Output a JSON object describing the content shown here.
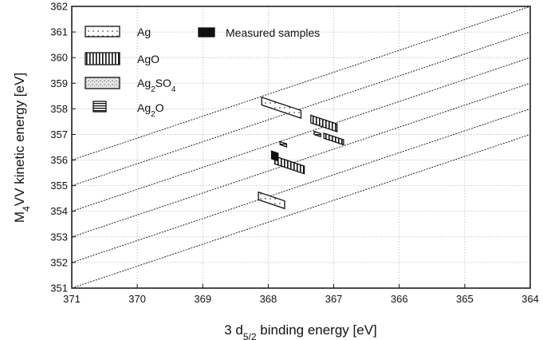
{
  "chart_data": {
    "type": "scatter",
    "xlabel_parts": [
      "3 d",
      "5/2",
      " binding energy [eV]"
    ],
    "ylabel_parts": [
      "M",
      "4",
      "VV kinetic energy [eV]"
    ],
    "xlim": [
      371,
      364
    ],
    "ylim": [
      351,
      362
    ],
    "x_ticks": [
      "371",
      "370",
      "369",
      "368",
      "367",
      "366",
      "365",
      "364"
    ],
    "y_ticks": [
      "351",
      "352",
      "353",
      "354",
      "355",
      "356",
      "357",
      "358",
      "359",
      "360",
      "361",
      "362"
    ],
    "x_tick_values": [
      371,
      370,
      369,
      368,
      367,
      366,
      365,
      364
    ],
    "y_tick_values": [
      351,
      352,
      353,
      354,
      355,
      356,
      357,
      358,
      359,
      360,
      361,
      362
    ],
    "grid": true,
    "legend_position": "top-left",
    "auger_parameter_lines": [
      {
        "x0": 371,
        "y0": 356,
        "x1": 364,
        "y1": 362
      },
      {
        "x0": 371,
        "y0": 355,
        "x1": 364,
        "y1": 361
      },
      {
        "x0": 371,
        "y0": 354,
        "x1": 364,
        "y1": 360
      },
      {
        "x0": 371,
        "y0": 353,
        "x1": 364,
        "y1": 359
      },
      {
        "x0": 371,
        "y0": 352,
        "x1": 364,
        "y1": 358
      },
      {
        "x0": 371,
        "y0": 351,
        "x1": 364,
        "y1": 357
      }
    ],
    "legend": [
      {
        "key": "ag",
        "label_parts": [
          "Ag"
        ]
      },
      {
        "key": "measured",
        "label_parts": [
          "Measured samples"
        ]
      },
      {
        "key": "ago",
        "label_parts": [
          "AgO"
        ]
      },
      {
        "key": "ag2so4",
        "label_parts": [
          "Ag",
          "2",
          "SO",
          "4"
        ]
      },
      {
        "key": "ag2o",
        "label_parts": [
          "Ag",
          "2",
          "O"
        ]
      }
    ],
    "regions": [
      {
        "kind": "ag",
        "x": [
          368.1,
          367.5
        ],
        "y": [
          358.15,
          358.45
        ]
      },
      {
        "kind": "ag",
        "x": [
          368.15,
          367.75
        ],
        "y": [
          354.45,
          354.75
        ]
      },
      {
        "kind": "ago",
        "x": [
          367.9,
          367.45
        ],
        "y": [
          355.85,
          356.15
        ]
      },
      {
        "kind": "ago",
        "x": [
          367.35,
          366.95
        ],
        "y": [
          357.45,
          357.75
        ]
      },
      {
        "kind": "ago",
        "x": [
          367.15,
          366.85
        ],
        "y": [
          356.85,
          357.05
        ]
      },
      {
        "kind": "ag2o",
        "x": [
          367.82,
          367.72
        ],
        "y": [
          356.6,
          356.72
        ]
      },
      {
        "kind": "ag2o",
        "x": [
          367.3,
          367.2
        ],
        "y": [
          357.0,
          357.12
        ]
      },
      {
        "kind": "measured",
        "x": [
          367.95,
          367.85
        ],
        "y": [
          356.05,
          356.35
        ]
      }
    ]
  }
}
